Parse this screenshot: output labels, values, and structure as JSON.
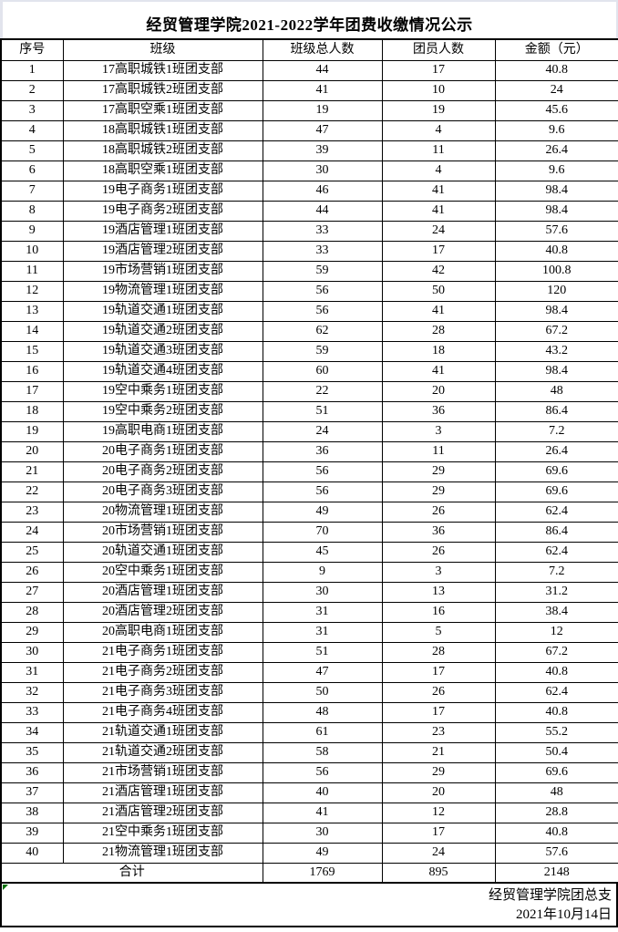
{
  "title": "经贸管理学院2021-2022学年团费收缴情况公示",
  "table": {
    "headers": [
      "序号",
      "班级",
      "班级总人数",
      "团员人数",
      "金额（元）"
    ],
    "rows": [
      [
        "1",
        "17高职城铁1班团支部",
        "44",
        "17",
        "40.8"
      ],
      [
        "2",
        "17高职城铁2班团支部",
        "41",
        "10",
        "24"
      ],
      [
        "3",
        "17高职空乘1班团支部",
        "19",
        "19",
        "45.6"
      ],
      [
        "4",
        "18高职城铁1班团支部",
        "47",
        "4",
        "9.6"
      ],
      [
        "5",
        "18高职城铁2班团支部",
        "39",
        "11",
        "26.4"
      ],
      [
        "6",
        "18高职空乘1班团支部",
        "30",
        "4",
        "9.6"
      ],
      [
        "7",
        "19电子商务1班团支部",
        "46",
        "41",
        "98.4"
      ],
      [
        "8",
        "19电子商务2班团支部",
        "44",
        "41",
        "98.4"
      ],
      [
        "9",
        "19酒店管理1班团支部",
        "33",
        "24",
        "57.6"
      ],
      [
        "10",
        "19酒店管理2班团支部",
        "33",
        "17",
        "40.8"
      ],
      [
        "11",
        "19市场营销1班团支部",
        "59",
        "42",
        "100.8"
      ],
      [
        "12",
        "19物流管理1班团支部",
        "56",
        "50",
        "120"
      ],
      [
        "13",
        "19轨道交通1班团支部",
        "56",
        "41",
        "98.4"
      ],
      [
        "14",
        "19轨道交通2班团支部",
        "62",
        "28",
        "67.2"
      ],
      [
        "15",
        "19轨道交通3班团支部",
        "59",
        "18",
        "43.2"
      ],
      [
        "16",
        "19轨道交通4班团支部",
        "60",
        "41",
        "98.4"
      ],
      [
        "17",
        "19空中乘务1班团支部",
        "22",
        "20",
        "48"
      ],
      [
        "18",
        "19空中乘务2班团支部",
        "51",
        "36",
        "86.4"
      ],
      [
        "19",
        "19高职电商1班团支部",
        "24",
        "3",
        "7.2"
      ],
      [
        "20",
        "20电子商务1班团支部",
        "36",
        "11",
        "26.4"
      ],
      [
        "21",
        "20电子商务2班团支部",
        "56",
        "29",
        "69.6"
      ],
      [
        "22",
        "20电子商务3班团支部",
        "56",
        "29",
        "69.6"
      ],
      [
        "23",
        "20物流管理1班团支部",
        "49",
        "26",
        "62.4"
      ],
      [
        "24",
        "20市场营销1班团支部",
        "70",
        "36",
        "86.4"
      ],
      [
        "25",
        "20轨道交通1班团支部",
        "45",
        "26",
        "62.4"
      ],
      [
        "26",
        "20空中乘务1班团支部",
        "9",
        "3",
        "7.2"
      ],
      [
        "27",
        "20酒店管理1班团支部",
        "30",
        "13",
        "31.2"
      ],
      [
        "28",
        "20酒店管理2班团支部",
        "31",
        "16",
        "38.4"
      ],
      [
        "29",
        "20高职电商1班团支部",
        "31",
        "5",
        "12"
      ],
      [
        "30",
        "21电子商务1班团支部",
        "51",
        "28",
        "67.2"
      ],
      [
        "31",
        "21电子商务2班团支部",
        "47",
        "17",
        "40.8"
      ],
      [
        "32",
        "21电子商务3班团支部",
        "50",
        "26",
        "62.4"
      ],
      [
        "33",
        "21电子商务4班团支部",
        "48",
        "17",
        "40.8"
      ],
      [
        "34",
        "21轨道交通1班团支部",
        "61",
        "23",
        "55.2"
      ],
      [
        "35",
        "21轨道交通2班团支部",
        "58",
        "21",
        "50.4"
      ],
      [
        "36",
        "21市场营销1班团支部",
        "56",
        "29",
        "69.6"
      ],
      [
        "37",
        "21酒店管理1班团支部",
        "40",
        "20",
        "48"
      ],
      [
        "38",
        "21酒店管理2班团支部",
        "41",
        "12",
        "28.8"
      ],
      [
        "39",
        "21空中乘务1班团支部",
        "30",
        "17",
        "40.8"
      ],
      [
        "40",
        "21物流管理1班团支部",
        "49",
        "24",
        "57.6"
      ]
    ],
    "total": {
      "label": "合计",
      "class_total": "1769",
      "member_total": "895",
      "amount_total": "2148"
    }
  },
  "footer": {
    "org": "经贸管理学院团总支",
    "date": "2021年10月14日"
  },
  "colors": {
    "border": "#000000",
    "text": "#000000",
    "background": "#ffffff",
    "indicator_green": "#007000"
  }
}
